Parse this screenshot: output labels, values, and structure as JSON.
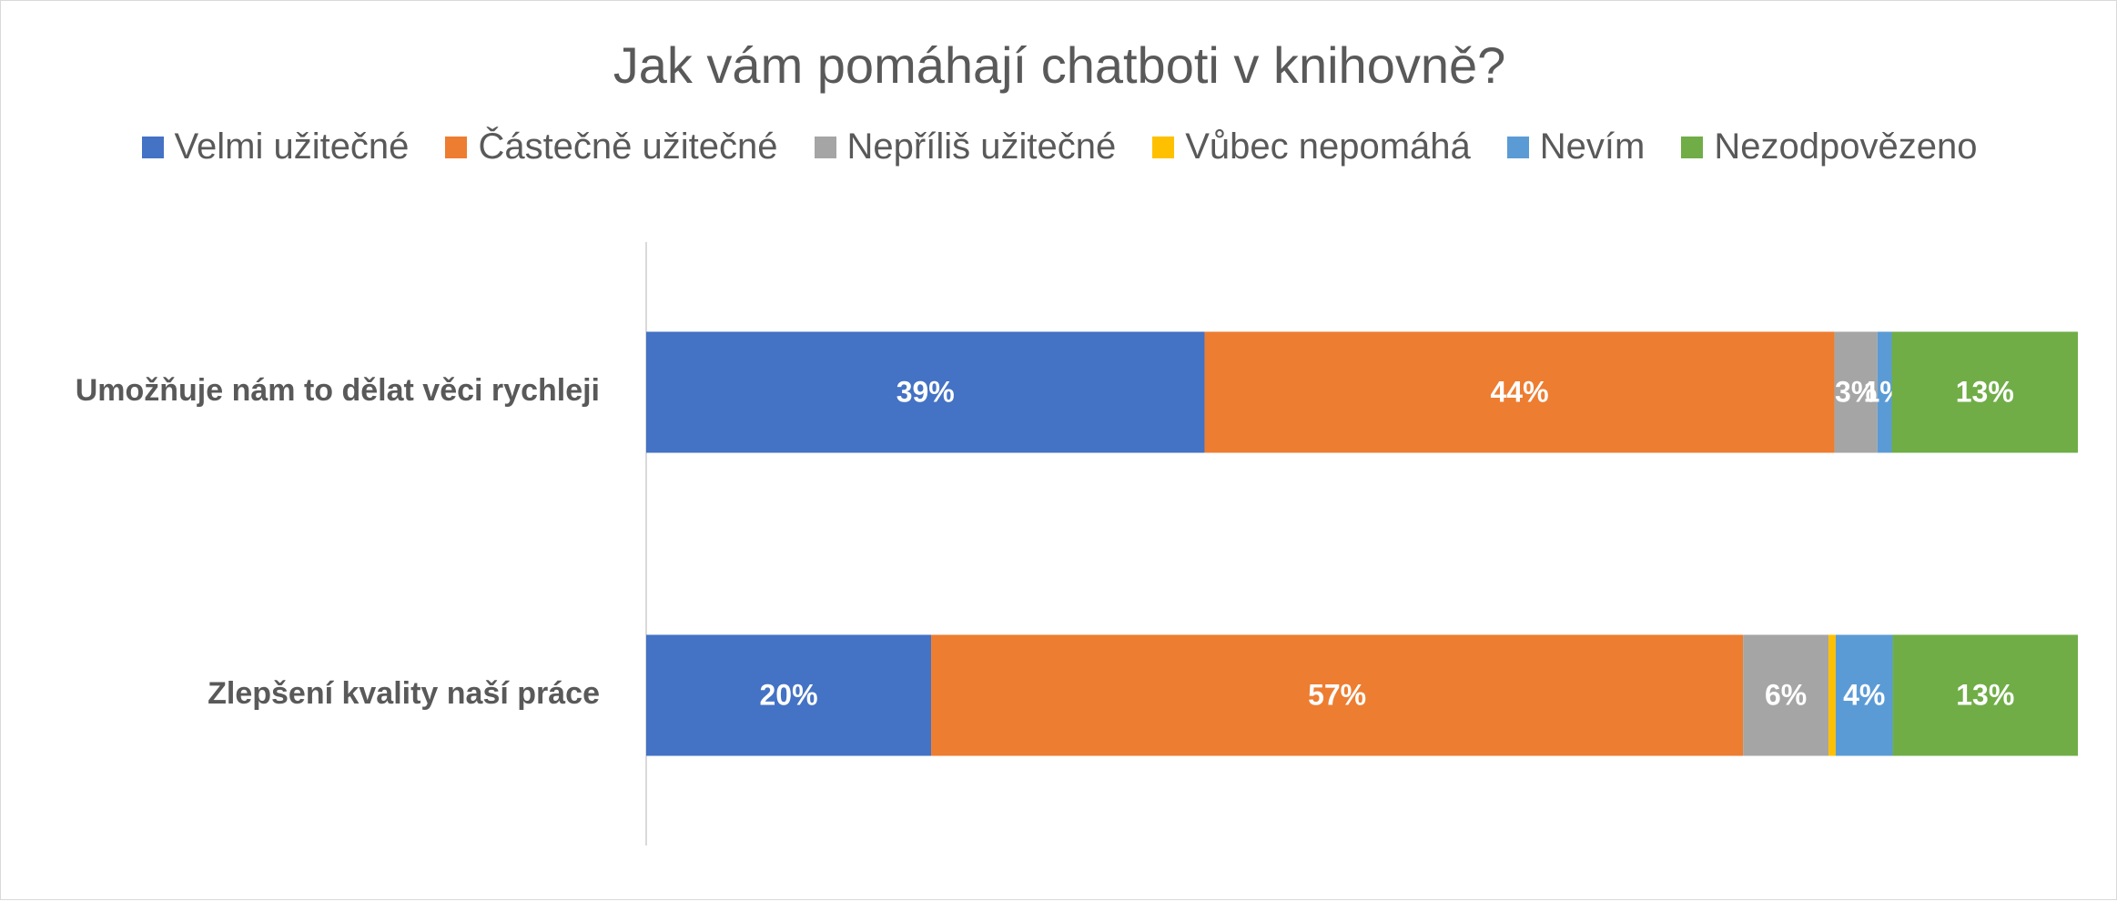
{
  "chart_data": {
    "type": "bar",
    "orientation": "horizontal",
    "stacked": true,
    "title": "Jak vám pomáhají chatboti v knihovně?",
    "categories": [
      "Umožňuje nám to dělat věci rychleji",
      "Zlepšení kvality naší práce"
    ],
    "series": [
      {
        "name": "Velmi užitečné",
        "color": "#4472C4",
        "values": [
          39,
          20
        ],
        "labels": [
          "39%",
          "20%"
        ]
      },
      {
        "name": "Částečně užitečné",
        "color": "#ED7D31",
        "values": [
          44,
          57
        ],
        "labels": [
          "44%",
          "57%"
        ]
      },
      {
        "name": "Nepříliš užitečné",
        "color": "#A5A5A5",
        "values": [
          3,
          6
        ],
        "labels": [
          "3%",
          "6%"
        ]
      },
      {
        "name": "Vůbec nepomáhá",
        "color": "#FFC000",
        "values": [
          0,
          0.5
        ],
        "labels": [
          "",
          ""
        ]
      },
      {
        "name": "Nevím",
        "color": "#5B9BD5",
        "values": [
          1,
          4
        ],
        "labels": [
          "1%",
          "4%"
        ]
      },
      {
        "name": "Nezodpovězeno",
        "color": "#70AD47",
        "values": [
          13,
          13
        ],
        "labels": [
          "13%",
          "13%"
        ]
      }
    ],
    "xlim": [
      0,
      100
    ],
    "legend": "top",
    "grid": false
  }
}
